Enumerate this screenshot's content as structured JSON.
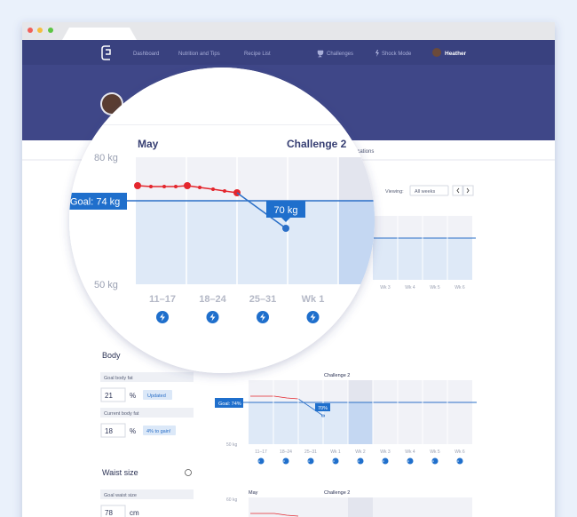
{
  "nav": {
    "items": [
      "Dashboard",
      "Nutrition and Tips",
      "Recipe List",
      "Challenges",
      "Shock Mode"
    ],
    "user": "Heather"
  },
  "tabs": {
    "partial": "ifications"
  },
  "viewing": {
    "label": "Viewing:",
    "select": "All weeks"
  },
  "background_chart": {
    "categories": [
      "Wk 3",
      "Wk 4",
      "Wk 5",
      "Wk 6"
    ]
  },
  "magnifier": {
    "month": "May",
    "challenge": "Challenge 2",
    "y_top": "80 kg",
    "y_bottom": "50 kg",
    "goal": "Goal: 74 kg",
    "callout": "70 kg",
    "categories": [
      "11–17",
      "18–24",
      "25–31",
      "Wk 1",
      "Wk"
    ]
  },
  "body_fat": {
    "title": "Body",
    "goal_label": "Goal body fat",
    "goal_value": "21",
    "goal_unit": "%",
    "goal_badge": "Updated",
    "current_label": "Current body fat",
    "current_value": "18",
    "current_unit": "%",
    "current_badge": "4% to gain!"
  },
  "body_fat_chart": {
    "challenge": "Challenge 2",
    "goal": "Goal: 74%",
    "callout": "70%",
    "y_bottom": "50 kg",
    "categories": [
      "11–17",
      "18–24",
      "25–31",
      "Wk 1",
      "Wk 2",
      "Wk 3",
      "Wk 4",
      "Wk 5",
      "Wk 6"
    ]
  },
  "waist": {
    "title": "Waist size",
    "goal_label": "Goal waist size",
    "goal_value": "78",
    "goal_unit": "cm"
  },
  "waist_chart": {
    "month": "May",
    "challenge": "Challenge 2",
    "y_top": "60 kg"
  }
}
